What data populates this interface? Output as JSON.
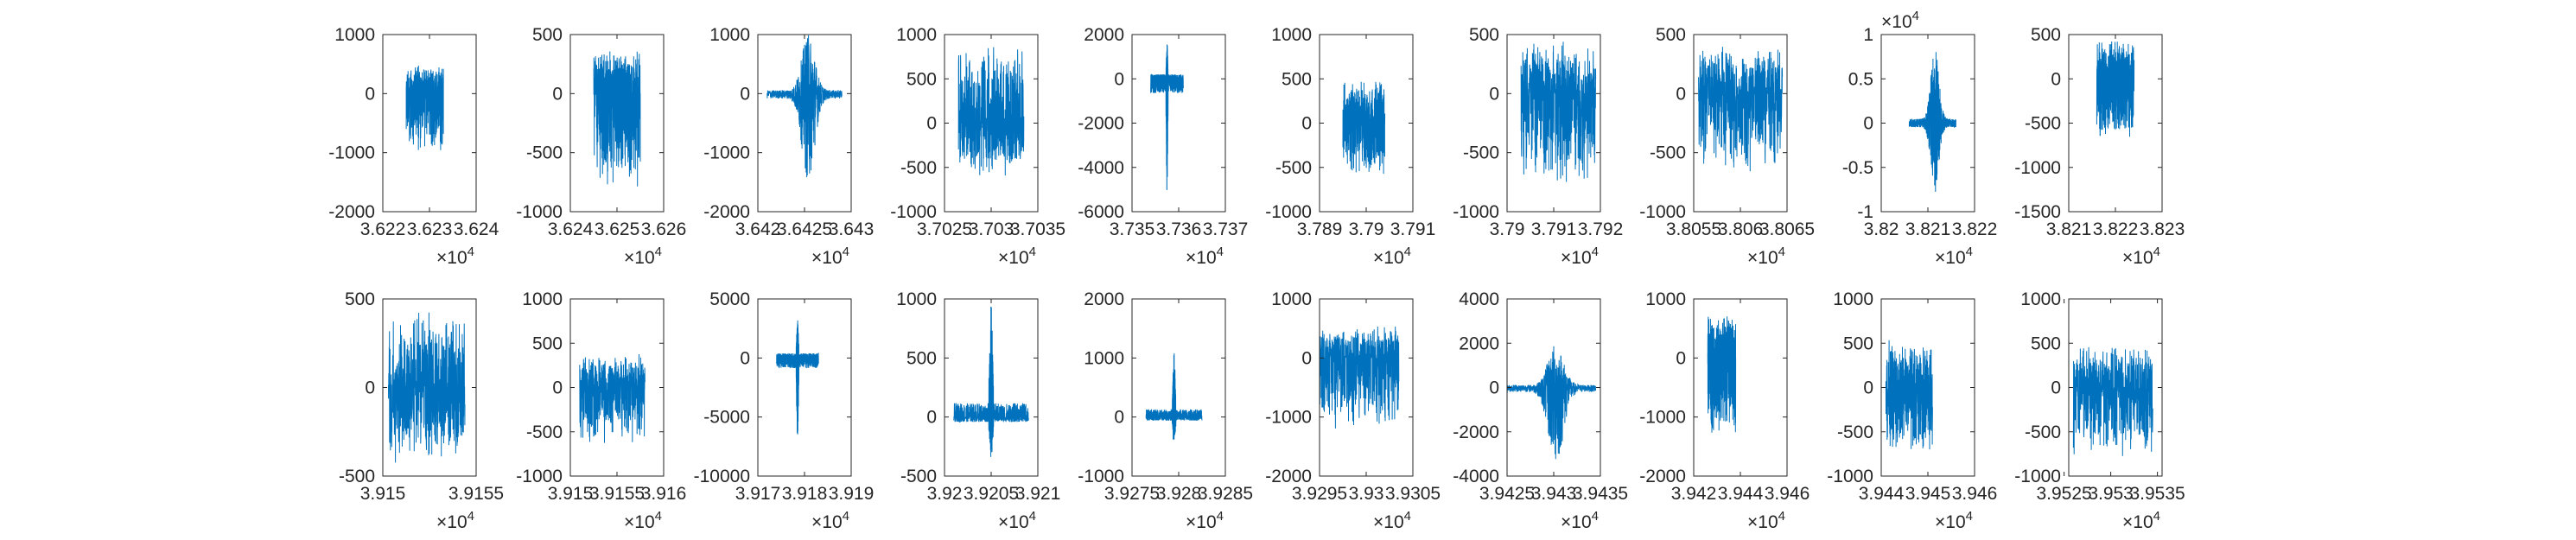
{
  "figure": {
    "background": "#ffffff",
    "line_color": "#0072BD",
    "axis_color": "#262626",
    "exponent_label": "×10",
    "exponent": "4"
  },
  "chart_data": [
    {
      "type": "line",
      "xlim": [
        3.622,
        3.624
      ],
      "ylim": [
        -2000,
        1000
      ],
      "xticks": [
        "3.622",
        "3.623",
        "3.624"
      ],
      "yticks": [
        "-2000",
        "-1000",
        "0",
        "1000"
      ],
      "x_exponent": "4",
      "y_exponent": "",
      "signal": {
        "x_range": [
          3.6225,
          3.6233
        ],
        "amplitude": [
          -1000,
          500
        ],
        "shape": "noise"
      }
    },
    {
      "type": "line",
      "xlim": [
        3.624,
        3.626
      ],
      "ylim": [
        -1000,
        500
      ],
      "xticks": [
        "3.624",
        "3.625",
        "3.626"
      ],
      "yticks": [
        "-1000",
        "-500",
        "0",
        "500"
      ],
      "x_exponent": "4",
      "y_exponent": "",
      "signal": {
        "x_range": [
          3.6245,
          3.6255
        ],
        "amplitude": [
          -850,
          380
        ],
        "shape": "noise"
      }
    },
    {
      "type": "line",
      "xlim": [
        3.642,
        3.643
      ],
      "ylim": [
        -2000,
        1000
      ],
      "xticks": [
        "3.642",
        "3.6425",
        "3.643"
      ],
      "yticks": [
        "-2000",
        "-1000",
        "0",
        "1000"
      ],
      "x_exponent": "4",
      "y_exponent": "",
      "signal": {
        "x_range": [
          3.6421,
          3.6429
        ],
        "amplitude": [
          -1400,
          950
        ],
        "shape": "burst"
      }
    },
    {
      "type": "line",
      "xlim": [
        3.7025,
        3.7035
      ],
      "ylim": [
        -1000,
        1000
      ],
      "xticks": [
        "3.7025",
        "3.703",
        "3.7035"
      ],
      "yticks": [
        "-1000",
        "-500",
        "0",
        "500",
        "1000"
      ],
      "x_exponent": "4",
      "y_exponent": "",
      "signal": {
        "x_range": [
          3.70265,
          3.70335
        ],
        "amplitude": [
          -600,
          900
        ],
        "shape": "noise"
      }
    },
    {
      "type": "line",
      "xlim": [
        3.735,
        3.737
      ],
      "ylim": [
        -6000,
        2000
      ],
      "xticks": [
        "3.735",
        "3.736",
        "3.737"
      ],
      "yticks": [
        "-6000",
        "-4000",
        "-2000",
        "0",
        "2000"
      ],
      "x_exponent": "4",
      "y_exponent": "",
      "signal": {
        "x_range": [
          3.7354,
          3.7361
        ],
        "amplitude": [
          -5400,
          1700
        ],
        "shape": "spike"
      }
    },
    {
      "type": "line",
      "xlim": [
        3.789,
        3.791
      ],
      "ylim": [
        -1000,
        1000
      ],
      "xticks": [
        "3.789",
        "3.79",
        "3.791"
      ],
      "yticks": [
        "-1000",
        "-500",
        "0",
        "500",
        "1000"
      ],
      "x_exponent": "4",
      "y_exponent": "",
      "signal": {
        "x_range": [
          3.7895,
          3.7904
        ],
        "amplitude": [
          -600,
          500
        ],
        "shape": "noise"
      }
    },
    {
      "type": "line",
      "xlim": [
        3.79,
        3.792
      ],
      "ylim": [
        -1000,
        500
      ],
      "xticks": [
        "3.79",
        "3.791",
        "3.792"
      ],
      "yticks": [
        "-1000",
        "-500",
        "0",
        "500"
      ],
      "x_exponent": "4",
      "y_exponent": "",
      "signal": {
        "x_range": [
          3.7903,
          3.7919
        ],
        "amplitude": [
          -800,
          450
        ],
        "shape": "noise"
      }
    },
    {
      "type": "line",
      "xlim": [
        3.8055,
        3.8065
      ],
      "ylim": [
        -1000,
        500
      ],
      "xticks": [
        "3.8055",
        "3.806",
        "3.8065"
      ],
      "yticks": [
        "-1000",
        "-500",
        "0",
        "500"
      ],
      "x_exponent": "4",
      "y_exponent": "",
      "signal": {
        "x_range": [
          3.80555,
          3.80645
        ],
        "amplitude": [
          -700,
          400
        ],
        "shape": "noise"
      }
    },
    {
      "type": "line",
      "xlim": [
        3.82,
        3.822
      ],
      "ylim": [
        -1,
        1
      ],
      "xticks": [
        "3.82",
        "3.821",
        "3.822"
      ],
      "yticks": [
        "-1",
        "-0.5",
        "0",
        "0.5",
        "1"
      ],
      "x_exponent": "4",
      "y_exponent": "4",
      "signal": {
        "x_range": [
          3.8206,
          3.8216
        ],
        "amplitude": [
          -0.75,
          0.8
        ],
        "shape": "burst"
      }
    },
    {
      "type": "line",
      "xlim": [
        3.821,
        3.823
      ],
      "ylim": [
        -1500,
        500
      ],
      "xticks": [
        "3.821",
        "3.822",
        "3.823"
      ],
      "yticks": [
        "-1500",
        "-1000",
        "-500",
        "0",
        "500"
      ],
      "x_exponent": "4",
      "y_exponent": "",
      "signal": {
        "x_range": [
          3.8216,
          3.8224
        ],
        "amplitude": [
          -700,
          450
        ],
        "shape": "noise"
      }
    },
    {
      "type": "line",
      "xlim": [
        3.915,
        3.9155
      ],
      "ylim": [
        -500,
        500
      ],
      "xticks": [
        "3.915",
        "3.9155"
      ],
      "yticks": [
        "-500",
        "0",
        "500"
      ],
      "x_exponent": "4",
      "y_exponent": "",
      "signal": {
        "x_range": [
          3.91503,
          3.91544
        ],
        "amplitude": [
          -450,
          430
        ],
        "shape": "noise"
      }
    },
    {
      "type": "line",
      "xlim": [
        3.915,
        3.916
      ],
      "ylim": [
        -1000,
        1000
      ],
      "xticks": [
        "3.915",
        "3.9155",
        "3.916"
      ],
      "yticks": [
        "-1000",
        "-500",
        "0",
        "500",
        "1000"
      ],
      "x_exponent": "4",
      "y_exponent": "",
      "signal": {
        "x_range": [
          3.9151,
          3.9158
        ],
        "amplitude": [
          -650,
          380
        ],
        "shape": "noise"
      }
    },
    {
      "type": "line",
      "xlim": [
        3.917,
        3.919
      ],
      "ylim": [
        -10000,
        5000
      ],
      "xticks": [
        "3.917",
        "3.918",
        "3.919"
      ],
      "yticks": [
        "-10000",
        "-5000",
        "0",
        "5000"
      ],
      "x_exponent": "4",
      "y_exponent": "",
      "signal": {
        "x_range": [
          3.9174,
          3.9183
        ],
        "amplitude": [
          -7200,
          3300
        ],
        "shape": "spike"
      }
    },
    {
      "type": "line",
      "xlim": [
        3.92,
        3.921
      ],
      "ylim": [
        -500,
        1000
      ],
      "xticks": [
        "3.92",
        "3.9205",
        "3.921"
      ],
      "yticks": [
        "-500",
        "0",
        "500",
        "1000"
      ],
      "x_exponent": "4",
      "y_exponent": "",
      "signal": {
        "x_range": [
          3.9201,
          3.9209
        ],
        "amplitude": [
          -350,
          980
        ],
        "shape": "spike"
      }
    },
    {
      "type": "line",
      "xlim": [
        3.9275,
        3.9285
      ],
      "ylim": [
        -1000,
        2000
      ],
      "xticks": [
        "3.9275",
        "3.928",
        "3.9285"
      ],
      "yticks": [
        "-1000",
        "0",
        "1000",
        "2000"
      ],
      "x_exponent": "4",
      "y_exponent": "",
      "signal": {
        "x_range": [
          3.92765,
          3.92825
        ],
        "amplitude": [
          -500,
          1100
        ],
        "shape": "spike"
      }
    },
    {
      "type": "line",
      "xlim": [
        3.9295,
        3.9305
      ],
      "ylim": [
        -2000,
        1000
      ],
      "xticks": [
        "3.9295",
        "3.93",
        "3.9305"
      ],
      "yticks": [
        "-2000",
        "-1000",
        "0",
        "1000"
      ],
      "x_exponent": "4",
      "y_exponent": "",
      "signal": {
        "x_range": [
          3.9295,
          3.93035
        ],
        "amplitude": [
          -1300,
          600
        ],
        "shape": "noise"
      }
    },
    {
      "type": "line",
      "xlim": [
        3.9425,
        3.9435
      ],
      "ylim": [
        -4000,
        4000
      ],
      "xticks": [
        "3.9425",
        "3.943",
        "3.9435"
      ],
      "yticks": [
        "-4000",
        "-2000",
        "0",
        "2000",
        "4000"
      ],
      "x_exponent": "4",
      "y_exponent": "",
      "signal": {
        "x_range": [
          3.9425,
          3.94345
        ],
        "amplitude": [
          -3300,
          1900
        ],
        "shape": "burst"
      }
    },
    {
      "type": "line",
      "xlim": [
        3.942,
        3.946
      ],
      "ylim": [
        -2000,
        1000
      ],
      "xticks": [
        "3.942",
        "3.944",
        "3.946"
      ],
      "yticks": [
        "-2000",
        "-1000",
        "0",
        "1000"
      ],
      "x_exponent": "4",
      "y_exponent": "",
      "signal": {
        "x_range": [
          3.9426,
          3.9438
        ],
        "amplitude": [
          -1300,
          750
        ],
        "shape": "noise"
      }
    },
    {
      "type": "line",
      "xlim": [
        3.944,
        3.946
      ],
      "ylim": [
        -1000,
        1000
      ],
      "xticks": [
        "3.944",
        "3.945",
        "3.946"
      ],
      "yticks": [
        "-1000",
        "-500",
        "0",
        "500",
        "1000"
      ],
      "x_exponent": "4",
      "y_exponent": "",
      "signal": {
        "x_range": [
          3.9441,
          3.9451
        ],
        "amplitude": [
          -750,
          550
        ],
        "shape": "noise"
      }
    },
    {
      "type": "line",
      "xlim": [
        3.95255,
        3.95355
      ],
      "ylim": [
        -1000,
        1000
      ],
      "xticks": [
        "3.9525",
        "3.953",
        "3.9535"
      ],
      "yticks": [
        "-1000",
        "-500",
        "0",
        "500",
        "1000"
      ],
      "x_exponent": "4",
      "y_exponent": "",
      "signal": {
        "x_range": [
          3.9526,
          3.95345
        ],
        "amplitude": [
          -850,
          500
        ],
        "shape": "noise"
      }
    }
  ]
}
